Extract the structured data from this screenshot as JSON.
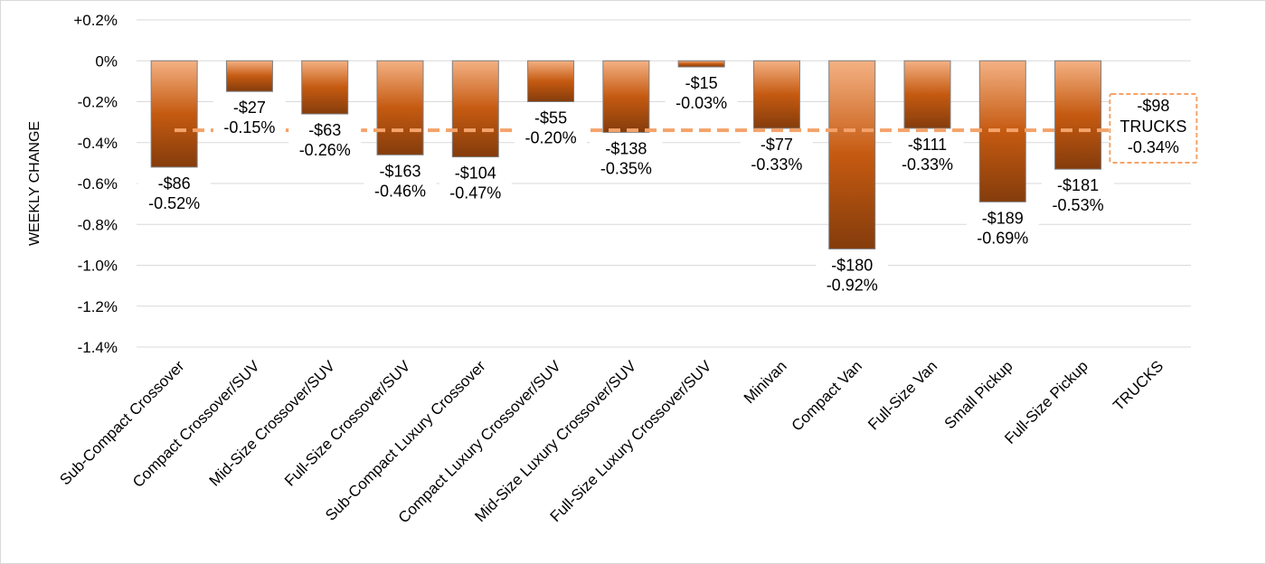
{
  "colors": {
    "bar_top": "#f4b183",
    "bar_mid": "#c55a11",
    "bar_bottom": "#843c0c",
    "bar_stroke": "#7f7f7f",
    "avg_line": "#f4a36a",
    "grid": "#d9d9d9"
  },
  "chart_data": {
    "type": "bar",
    "ylabel": "WEEKLY CHANGE",
    "ylim": [
      -1.4,
      0.2
    ],
    "y_ticks": [
      {
        "value": 0.2,
        "label": "+0.2%"
      },
      {
        "value": 0.0,
        "label": "0%"
      },
      {
        "value": -0.2,
        "label": "-0.2%"
      },
      {
        "value": -0.4,
        "label": "-0.4%"
      },
      {
        "value": -0.6,
        "label": "-0.6%"
      },
      {
        "value": -0.8,
        "label": "-0.8%"
      },
      {
        "value": -1.0,
        "label": "-1.0%"
      },
      {
        "value": -1.2,
        "label": "-1.2%"
      },
      {
        "value": -1.4,
        "label": "-1.4%"
      }
    ],
    "grid": true,
    "categories": [
      "Sub-Compact Crossover",
      "Compact Crossover/SUV",
      "Mid-Size Crossover/SUV",
      "Full-Size Crossover/SUV",
      "Sub-Compact Luxury Crossover",
      "Compact Luxury Crossover/SUV",
      "Mid-Size Luxury Crossover/SUV",
      "Full-Size Luxury Crossover/SUV",
      "Minivan",
      "Compact Van",
      "Full-Size Van",
      "Small Pickup",
      "Full-Size Pickup",
      "TRUCKS"
    ],
    "values": [
      -0.52,
      -0.15,
      -0.26,
      -0.46,
      -0.47,
      -0.2,
      -0.35,
      -0.03,
      -0.33,
      -0.92,
      -0.33,
      -0.69,
      -0.53,
      null
    ],
    "dollar_labels": [
      "-$86",
      "-$27",
      "-$63",
      "-$163",
      "-$104",
      "-$55",
      "-$138",
      "-$15",
      "-$77",
      "-$180",
      "-$111",
      "-$189",
      "-$181"
    ],
    "pct_labels": [
      "-0.52%",
      "-0.15%",
      "-0.26%",
      "-0.46%",
      "-0.47%",
      "-0.20%",
      "-0.35%",
      "-0.03%",
      "-0.33%",
      "-0.92%",
      "-0.33%",
      "-0.69%",
      "-0.53%"
    ],
    "average": {
      "value": -0.34,
      "label_lines": [
        "-$98",
        "TRUCKS",
        "-0.34%"
      ]
    }
  }
}
